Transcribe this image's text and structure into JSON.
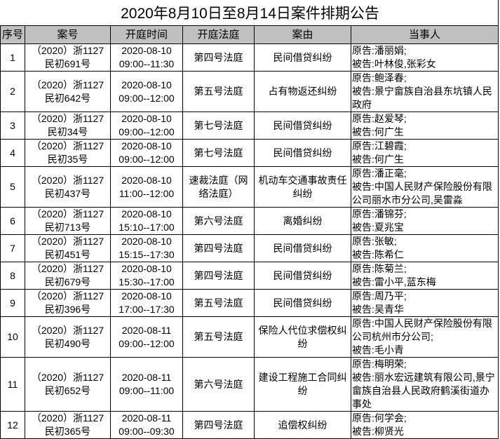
{
  "title": "2020年8月10日至8月14日案件排期公告",
  "headers": [
    "序号",
    "案号",
    "开庭时间",
    "开庭法庭",
    "案由",
    "当事人"
  ],
  "rows": [
    {
      "no": "1",
      "case": "（2020）浙1127民初691号",
      "time": "2020-08-10 09:00--11:30",
      "court": "第四号法庭",
      "cause": "民间借贷纠纷",
      "plaintiff": "原告:潘丽娟;",
      "defendant": "被告:叶林俊,张彩女"
    },
    {
      "no": "2",
      "case": "（2020）浙1127民初642号",
      "time": "2020-08-10 09:00--12:00",
      "court": "第五号法庭",
      "cause": "占有物返还纠纷",
      "plaintiff": "原告:鲍泽春;",
      "defendant": "被告:景宁畲族自治县东坑镇人民政府"
    },
    {
      "no": "3",
      "case": "（2020）浙1127民初34号",
      "time": "2020-08-10 09:00--12:00",
      "court": "第七号法庭",
      "cause": "民间借贷纠纷",
      "plaintiff": "原告:赵爱琴;",
      "defendant": "被告:何广生"
    },
    {
      "no": "4",
      "case": "（2020）浙1127民初35号",
      "time": "2020-08-10 09:00--12:00",
      "court": "第七号法庭",
      "cause": "民间借贷纠纷",
      "plaintiff": "原告:江碧霞;",
      "defendant": "被告:何广生"
    },
    {
      "no": "5",
      "case": "（2020）浙1127民初437号",
      "time": "2020-08-10 11:00--12:00",
      "court": "速裁法庭（网络法庭）",
      "cause": "机动车交通事故责任纠纷",
      "plaintiff": "原告:潘正毫;",
      "defendant": "被告:中国人民财产保险股份有限公司丽水市分公司,吴雷淼"
    },
    {
      "no": "6",
      "case": "（2020）浙1127民初713号",
      "time": "2020-08-10 15:10--17:00",
      "court": "第六号法庭",
      "cause": "离婚纠纷",
      "plaintiff": "原告:潘锦芬;",
      "defendant": "被告:夏兆宝"
    },
    {
      "no": "7",
      "case": "（2020）浙1127民初451号",
      "time": "2020-08-10 15:15--17:30",
      "court": "第四号法庭",
      "cause": "民间借贷纠纷",
      "plaintiff": "原告:张敏;",
      "defendant": "被告:陈希仁"
    },
    {
      "no": "8",
      "case": "（2020）浙1127民初679号",
      "time": "2020-08-10 15:30--17:00",
      "court": "第四号法庭",
      "cause": "民间借贷纠纷",
      "plaintiff": "原告:陈菊兰;",
      "defendant": "被告:雷小平,蓝东梅"
    },
    {
      "no": "9",
      "case": "（2020）浙1127民初396号",
      "time": "2020-08-10 17:00--17:30",
      "court": "第五号法庭",
      "cause": "民间借贷纠纷",
      "plaintiff": "原告:周乃平;",
      "defendant": "被告:吴青华"
    },
    {
      "no": "10",
      "case": "（2020）浙1127民初490号",
      "time": "2020-08-11 09:00--12:00",
      "court": "第五号法庭",
      "cause": "保险人代位求偿权纠纷",
      "plaintiff": "原告:中国人民财产保险股份有限公司杭州市分公司;",
      "defendant": "被告:毛小青"
    },
    {
      "no": "11",
      "case": "（2020）浙1127民初652号",
      "time": "2020-08-11 09:00--11:00",
      "court": "第六号法庭",
      "cause": "建设工程施工合同纠纷",
      "plaintiff": "原告:梅明荣;",
      "defendant": "被告:丽水宏远建筑有限公司,景宁畲族自治县人民政府鹤溪街道办事处"
    },
    {
      "no": "12",
      "case": "（2020）浙1127民初365号",
      "time": "2020-08-11 09:00--09:30",
      "court": "第四号法庭",
      "cause": "追偿权纠纷",
      "plaintiff": "原告:何学会;",
      "defendant": "被告:柳贤光"
    }
  ]
}
